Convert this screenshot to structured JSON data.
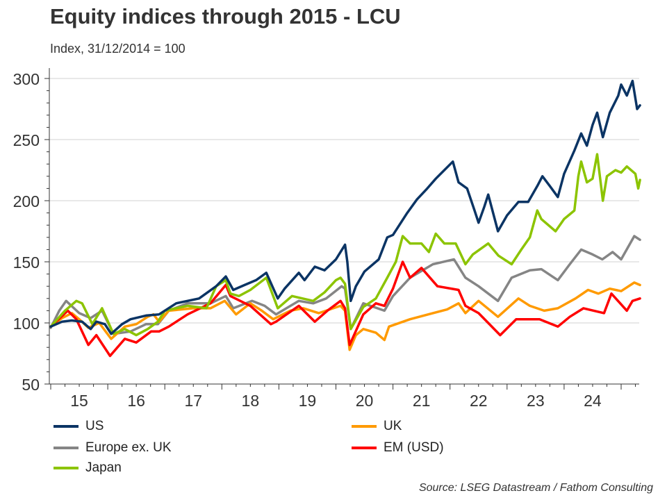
{
  "chart_data": {
    "type": "line",
    "title": "Equity indices through 2015 - LCU",
    "subtitle": "Index, 31/12/2014 = 100",
    "xlabel": "",
    "ylabel": "",
    "ylim": [
      50,
      300
    ],
    "xlim": [
      2015.0,
      2025.33
    ],
    "yticks": [
      "50",
      "100",
      "150",
      "200",
      "250",
      "300"
    ],
    "xtick_labels": [
      "15",
      "16",
      "17",
      "18",
      "19",
      "20",
      "21",
      "22",
      "23",
      "24"
    ],
    "grid": true,
    "legend_placement": "bottom",
    "source": "Source: LSEG Datastream / Fathom Consulting",
    "series": [
      {
        "name": "US",
        "color": "#0b3464",
        "points": [
          [
            2015.0,
            97
          ],
          [
            2015.2,
            101
          ],
          [
            2015.37,
            102
          ],
          [
            2015.55,
            101
          ],
          [
            2015.7,
            95
          ],
          [
            2015.8,
            101
          ],
          [
            2015.95,
            99
          ],
          [
            2016.06,
            91
          ],
          [
            2016.25,
            99
          ],
          [
            2016.4,
            103
          ],
          [
            2016.67,
            106
          ],
          [
            2016.9,
            107
          ],
          [
            2017.2,
            116
          ],
          [
            2017.6,
            120
          ],
          [
            2017.9,
            130
          ],
          [
            2018.07,
            138
          ],
          [
            2018.2,
            127
          ],
          [
            2018.4,
            131
          ],
          [
            2018.6,
            135
          ],
          [
            2018.78,
            141
          ],
          [
            2018.98,
            120
          ],
          [
            2019.1,
            128
          ],
          [
            2019.35,
            141
          ],
          [
            2019.45,
            135
          ],
          [
            2019.63,
            146
          ],
          [
            2019.8,
            143
          ],
          [
            2020.0,
            152
          ],
          [
            2020.16,
            164
          ],
          [
            2020.2,
            150
          ],
          [
            2020.26,
            118
          ],
          [
            2020.35,
            130
          ],
          [
            2020.5,
            142
          ],
          [
            2020.75,
            152
          ],
          [
            2020.9,
            170
          ],
          [
            2021.0,
            172
          ],
          [
            2021.25,
            190
          ],
          [
            2021.42,
            201
          ],
          [
            2021.6,
            210
          ],
          [
            2021.75,
            218
          ],
          [
            2021.9,
            225
          ],
          [
            2022.05,
            232
          ],
          [
            2022.15,
            215
          ],
          [
            2022.3,
            210
          ],
          [
            2022.43,
            192
          ],
          [
            2022.5,
            182
          ],
          [
            2022.6,
            195
          ],
          [
            2022.67,
            205
          ],
          [
            2022.84,
            175
          ],
          [
            2023.0,
            188
          ],
          [
            2023.2,
            199
          ],
          [
            2023.37,
            199
          ],
          [
            2023.53,
            212
          ],
          [
            2023.62,
            220
          ],
          [
            2023.75,
            212
          ],
          [
            2023.89,
            203
          ],
          [
            2024.0,
            222
          ],
          [
            2024.18,
            241
          ],
          [
            2024.3,
            255
          ],
          [
            2024.4,
            245
          ],
          [
            2024.5,
            262
          ],
          [
            2024.58,
            272
          ],
          [
            2024.68,
            252
          ],
          [
            2024.8,
            272
          ],
          [
            2024.95,
            286
          ],
          [
            2025.0,
            295
          ],
          [
            2025.1,
            286
          ],
          [
            2025.2,
            298
          ],
          [
            2025.28,
            275
          ],
          [
            2025.33,
            278
          ]
        ]
      },
      {
        "name": "Europe ex. UK",
        "color": "#858585",
        "points": [
          [
            2015.0,
            96
          ],
          [
            2015.15,
            110
          ],
          [
            2015.27,
            118
          ],
          [
            2015.5,
            108
          ],
          [
            2015.7,
            104
          ],
          [
            2015.9,
            110
          ],
          [
            2016.1,
            91
          ],
          [
            2016.4,
            93
          ],
          [
            2016.67,
            99
          ],
          [
            2016.88,
            99
          ],
          [
            2017.07,
            110
          ],
          [
            2017.4,
            116
          ],
          [
            2017.8,
            116
          ],
          [
            2018.07,
            122
          ],
          [
            2018.2,
            112
          ],
          [
            2018.53,
            118
          ],
          [
            2018.75,
            114
          ],
          [
            2018.95,
            107
          ],
          [
            2019.35,
            118
          ],
          [
            2019.6,
            116
          ],
          [
            2019.83,
            120
          ],
          [
            2020.1,
            130
          ],
          [
            2020.16,
            128
          ],
          [
            2020.26,
            95
          ],
          [
            2020.48,
            116
          ],
          [
            2020.85,
            110
          ],
          [
            2021.0,
            122
          ],
          [
            2021.3,
            137
          ],
          [
            2021.7,
            148
          ],
          [
            2022.07,
            152
          ],
          [
            2022.27,
            137
          ],
          [
            2022.5,
            130
          ],
          [
            2022.84,
            118
          ],
          [
            2023.08,
            137
          ],
          [
            2023.4,
            143
          ],
          [
            2023.6,
            144
          ],
          [
            2023.89,
            135
          ],
          [
            2024.1,
            148
          ],
          [
            2024.3,
            160
          ],
          [
            2024.5,
            156
          ],
          [
            2024.67,
            152
          ],
          [
            2024.85,
            158
          ],
          [
            2025.0,
            152
          ],
          [
            2025.23,
            171
          ],
          [
            2025.33,
            168
          ]
        ]
      },
      {
        "name": "Japan",
        "color": "#8cc400",
        "points": [
          [
            2015.0,
            97
          ],
          [
            2015.25,
            110
          ],
          [
            2015.45,
            118
          ],
          [
            2015.55,
            116
          ],
          [
            2015.73,
            99
          ],
          [
            2015.9,
            112
          ],
          [
            2016.1,
            91
          ],
          [
            2016.3,
            95
          ],
          [
            2016.5,
            90
          ],
          [
            2016.7,
            95
          ],
          [
            2016.88,
            101
          ],
          [
            2017.0,
            110
          ],
          [
            2017.4,
            114
          ],
          [
            2017.73,
            112
          ],
          [
            2017.9,
            130
          ],
          [
            2018.07,
            135
          ],
          [
            2018.15,
            124
          ],
          [
            2018.3,
            122
          ],
          [
            2018.5,
            127
          ],
          [
            2018.78,
            137
          ],
          [
            2018.98,
            112
          ],
          [
            2019.23,
            122
          ],
          [
            2019.6,
            118
          ],
          [
            2019.8,
            125
          ],
          [
            2020.0,
            135
          ],
          [
            2020.08,
            137
          ],
          [
            2020.16,
            132
          ],
          [
            2020.26,
            95
          ],
          [
            2020.48,
            113
          ],
          [
            2020.7,
            120
          ],
          [
            2020.9,
            137
          ],
          [
            2021.05,
            150
          ],
          [
            2021.17,
            171
          ],
          [
            2021.3,
            165
          ],
          [
            2021.5,
            165
          ],
          [
            2021.63,
            158
          ],
          [
            2021.75,
            173
          ],
          [
            2021.9,
            165
          ],
          [
            2022.1,
            165
          ],
          [
            2022.27,
            148
          ],
          [
            2022.4,
            156
          ],
          [
            2022.67,
            165
          ],
          [
            2022.85,
            155
          ],
          [
            2023.08,
            148
          ],
          [
            2023.25,
            160
          ],
          [
            2023.4,
            170
          ],
          [
            2023.53,
            192
          ],
          [
            2023.6,
            185
          ],
          [
            2023.85,
            175
          ],
          [
            2024.0,
            185
          ],
          [
            2024.18,
            192
          ],
          [
            2024.25,
            220
          ],
          [
            2024.3,
            232
          ],
          [
            2024.4,
            215
          ],
          [
            2024.5,
            218
          ],
          [
            2024.58,
            238
          ],
          [
            2024.68,
            200
          ],
          [
            2024.75,
            220
          ],
          [
            2024.9,
            225
          ],
          [
            2025.0,
            223
          ],
          [
            2025.1,
            228
          ],
          [
            2025.25,
            222
          ],
          [
            2025.3,
            210
          ],
          [
            2025.33,
            217
          ]
        ]
      },
      {
        "name": "UK",
        "color": "#ff9a00",
        "points": [
          [
            2015.0,
            97
          ],
          [
            2015.2,
            104
          ],
          [
            2015.37,
            108
          ],
          [
            2015.5,
            103
          ],
          [
            2015.66,
            96
          ],
          [
            2015.85,
            100
          ],
          [
            2016.06,
            87
          ],
          [
            2016.3,
            97
          ],
          [
            2016.5,
            99
          ],
          [
            2016.7,
            105
          ],
          [
            2016.8,
            107
          ],
          [
            2016.9,
            101
          ],
          [
            2017.07,
            110
          ],
          [
            2017.5,
            112
          ],
          [
            2017.8,
            112
          ],
          [
            2018.05,
            118
          ],
          [
            2018.25,
            107
          ],
          [
            2018.5,
            116
          ],
          [
            2018.7,
            110
          ],
          [
            2018.9,
            103
          ],
          [
            2019.2,
            110
          ],
          [
            2019.43,
            112
          ],
          [
            2019.7,
            108
          ],
          [
            2020.08,
            114
          ],
          [
            2020.16,
            110
          ],
          [
            2020.24,
            78
          ],
          [
            2020.35,
            90
          ],
          [
            2020.48,
            95
          ],
          [
            2020.7,
            92
          ],
          [
            2020.85,
            86
          ],
          [
            2020.93,
            97
          ],
          [
            2021.3,
            103
          ],
          [
            2021.7,
            108
          ],
          [
            2021.95,
            111
          ],
          [
            2022.15,
            116
          ],
          [
            2022.27,
            108
          ],
          [
            2022.5,
            118
          ],
          [
            2022.84,
            105
          ],
          [
            2023.2,
            120
          ],
          [
            2023.4,
            114
          ],
          [
            2023.65,
            110
          ],
          [
            2023.89,
            112
          ],
          [
            2024.2,
            120
          ],
          [
            2024.42,
            127
          ],
          [
            2024.6,
            124
          ],
          [
            2024.8,
            128
          ],
          [
            2025.0,
            126
          ],
          [
            2025.23,
            133
          ],
          [
            2025.33,
            131
          ]
        ]
      },
      {
        "name": "EM (USD)",
        "color": "#ff0000",
        "points": [
          [
            2015.0,
            97
          ],
          [
            2015.3,
            110
          ],
          [
            2015.45,
            103
          ],
          [
            2015.66,
            82
          ],
          [
            2015.8,
            90
          ],
          [
            2016.04,
            73
          ],
          [
            2016.3,
            87
          ],
          [
            2016.5,
            84
          ],
          [
            2016.76,
            93
          ],
          [
            2016.9,
            93
          ],
          [
            2017.07,
            97
          ],
          [
            2017.4,
            107
          ],
          [
            2017.8,
            116
          ],
          [
            2018.07,
            131
          ],
          [
            2018.15,
            122
          ],
          [
            2018.5,
            114
          ],
          [
            2018.86,
            99
          ],
          [
            2018.95,
            101
          ],
          [
            2019.35,
            114
          ],
          [
            2019.63,
            101
          ],
          [
            2019.85,
            110
          ],
          [
            2020.08,
            118
          ],
          [
            2020.16,
            112
          ],
          [
            2020.24,
            82
          ],
          [
            2020.48,
            107
          ],
          [
            2020.7,
            116
          ],
          [
            2020.85,
            114
          ],
          [
            2021.0,
            128
          ],
          [
            2021.17,
            150
          ],
          [
            2021.3,
            137
          ],
          [
            2021.5,
            145
          ],
          [
            2021.78,
            130
          ],
          [
            2022.15,
            127
          ],
          [
            2022.27,
            114
          ],
          [
            2022.5,
            108
          ],
          [
            2022.88,
            90
          ],
          [
            2023.16,
            103
          ],
          [
            2023.57,
            103
          ],
          [
            2023.89,
            97
          ],
          [
            2024.1,
            105
          ],
          [
            2024.34,
            112
          ],
          [
            2024.7,
            108
          ],
          [
            2024.83,
            124
          ],
          [
            2025.1,
            110
          ],
          [
            2025.2,
            118
          ],
          [
            2025.33,
            120
          ]
        ]
      }
    ]
  },
  "legend": [
    {
      "label": "US",
      "color": "#0b3464"
    },
    {
      "label": "UK",
      "color": "#ff9a00"
    },
    {
      "label": "Europe ex. UK",
      "color": "#858585"
    },
    {
      "label": "EM (USD)",
      "color": "#ff0000"
    },
    {
      "label": "Japan",
      "color": "#8cc400"
    }
  ]
}
